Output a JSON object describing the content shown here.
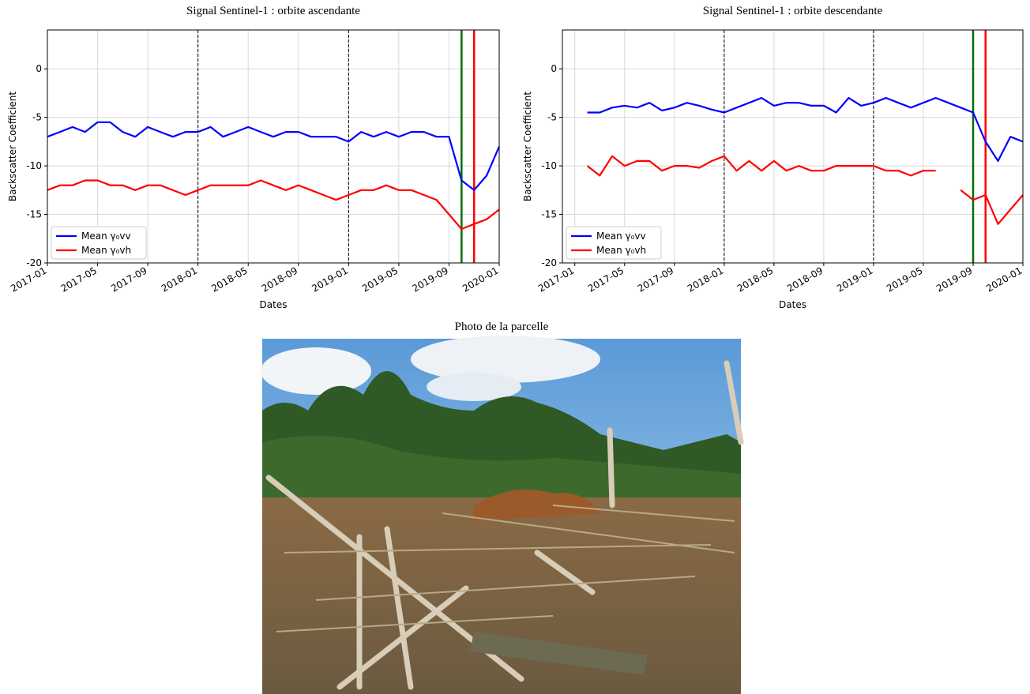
{
  "chart_data": [
    {
      "type": "line",
      "title": "Signal Sentinel-1 : orbite ascendante",
      "xlabel": "Dates",
      "ylabel": "Backscatter Coefficient",
      "x": [
        "2017-01",
        "2017-02",
        "2017-03",
        "2017-04",
        "2017-05",
        "2017-06",
        "2017-07",
        "2017-08",
        "2017-09",
        "2017-10",
        "2017-11",
        "2017-12",
        "2018-01",
        "2018-02",
        "2018-03",
        "2018-04",
        "2018-05",
        "2018-06",
        "2018-07",
        "2018-08",
        "2018-09",
        "2018-10",
        "2018-11",
        "2018-12",
        "2019-01",
        "2019-02",
        "2019-03",
        "2019-04",
        "2019-05",
        "2019-06",
        "2019-07",
        "2019-08",
        "2019-09",
        "2019-10",
        "2019-11",
        "2019-12",
        "2020-01"
      ],
      "series": [
        {
          "name": "Mean γ₀vv",
          "color": "#0000ff",
          "values": [
            -7,
            -6.5,
            -6,
            -6.5,
            -5.5,
            -5.5,
            -6.5,
            -7,
            -6,
            -6.5,
            -7,
            -6.5,
            -6.5,
            -6,
            -7,
            -6.5,
            -6,
            -6.5,
            -7,
            -6.5,
            -6.5,
            -7,
            -7,
            -7,
            -7.5,
            -6.5,
            -7,
            -6.5,
            -7,
            -6.5,
            -6.5,
            -7,
            -7,
            -11.5,
            -12.5,
            -11,
            -8
          ]
        },
        {
          "name": "Mean γ₀vh",
          "color": "#ff0000",
          "values": [
            -12.5,
            -12,
            -12,
            -11.5,
            -11.5,
            -12,
            -12,
            -12.5,
            -12,
            -12,
            -12.5,
            -13,
            -12.5,
            -12,
            -12,
            -12,
            -12,
            -11.5,
            -12,
            -12.5,
            -12,
            -12.5,
            -13,
            -13.5,
            -13,
            -12.5,
            -12.5,
            -12,
            -12.5,
            -12.5,
            -13,
            -13.5,
            -15,
            -16.5,
            -16,
            -15.5,
            -14.5
          ]
        }
      ],
      "vlines": [
        {
          "x": "2018-01",
          "color": "#000000",
          "style": "dashed"
        },
        {
          "x": "2019-01",
          "color": "#000000",
          "style": "dashed"
        },
        {
          "x": "2019-10",
          "color": "#007000",
          "style": "solid"
        },
        {
          "x": "2019-11",
          "color": "#ff0000",
          "style": "solid"
        }
      ],
      "xlim": [
        "2017-01",
        "2020-01"
      ],
      "xticks": [
        "2017-01",
        "2017-05",
        "2017-09",
        "2018-01",
        "2018-05",
        "2018-09",
        "2019-01",
        "2019-05",
        "2019-09",
        "2020-01"
      ],
      "ylim": [
        -20,
        4
      ],
      "yticks": [
        -20,
        -15,
        -10,
        -5,
        0
      ],
      "grid": true,
      "legend": "lower left"
    },
    {
      "type": "line",
      "title": "Signal Sentinel-1 : orbite descendante",
      "xlabel": "Dates",
      "ylabel": "Backscatter Coefficient",
      "x": [
        "2017-02",
        "2017-03",
        "2017-04",
        "2017-05",
        "2017-06",
        "2017-07",
        "2017-08",
        "2017-09",
        "2017-10",
        "2017-11",
        "2017-12",
        "2018-01",
        "2018-02",
        "2018-03",
        "2018-04",
        "2018-05",
        "2018-06",
        "2018-07",
        "2018-08",
        "2018-09",
        "2018-10",
        "2018-11",
        "2018-12",
        "2019-01",
        "2019-02",
        "2019-03",
        "2019-04",
        "2019-05",
        "2019-06",
        "2019-07",
        "2019-08",
        "2019-09",
        "2019-10",
        "2019-11",
        "2019-12",
        "2020-01"
      ],
      "series": [
        {
          "name": "Mean γ₀vv",
          "color": "#0000ff",
          "values": [
            -4.5,
            -4.5,
            -4,
            -3.8,
            -4,
            -3.5,
            -4.3,
            -4,
            -3.5,
            -3.8,
            -4.2,
            -4.5,
            -4,
            -3.5,
            -3,
            -3.8,
            -3.5,
            -3.5,
            -3.8,
            -3.8,
            -4.5,
            -3,
            -3.8,
            -3.5,
            -3,
            -3.5,
            -4,
            -3.5,
            -3,
            -3.5,
            -4,
            -4.5,
            -7.5,
            -9.5,
            -7,
            -7.5
          ]
        },
        {
          "name": "Mean γ₀vh",
          "color": "#ff0000",
          "values": [
            -10,
            -11,
            -9,
            -10,
            -9.5,
            -9.5,
            -10.5,
            -10,
            -10,
            -10.2,
            -9.5,
            -9,
            -10.5,
            -9.5,
            -10.5,
            -9.5,
            -10.5,
            -10,
            -10.5,
            -10.5,
            -10,
            -10,
            -10,
            -10,
            -10.5,
            -10.5,
            -11,
            -10.5,
            -10.5,
            null,
            -12.5,
            -13.5,
            -13,
            -16,
            -14.5,
            -13
          ]
        }
      ],
      "vlines": [
        {
          "x": "2018-01",
          "color": "#000000",
          "style": "dashed"
        },
        {
          "x": "2019-01",
          "color": "#000000",
          "style": "dashed"
        },
        {
          "x": "2019-09",
          "color": "#007000",
          "style": "solid"
        },
        {
          "x": "2019-10",
          "color": "#ff0000",
          "style": "solid"
        }
      ],
      "xlim": [
        "2016-12",
        "2020-01"
      ],
      "xticks": [
        "2017-01",
        "2017-05",
        "2017-09",
        "2018-01",
        "2018-05",
        "2018-09",
        "2019-01",
        "2019-05",
        "2019-09",
        "2020-01"
      ],
      "ylim": [
        -20,
        4
      ],
      "yticks": [
        -20,
        -15,
        -10,
        -5,
        0
      ],
      "grid": true,
      "legend": "lower left"
    }
  ],
  "photo": {
    "title": "Photo de la parcelle"
  }
}
